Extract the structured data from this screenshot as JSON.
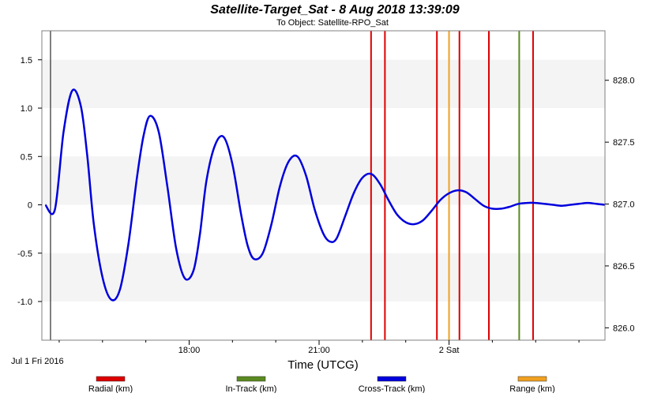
{
  "chart_data": {
    "type": "line",
    "title": "Satellite-Target_Sat -  8 Aug 2018 13:39:09",
    "subtitle": "To Object: Satellite-RPO_Sat",
    "xlabel": "Time (UTCG)",
    "x_start_label": "Jul 1 Fri 2016",
    "x_tick_labels": [
      "18:00",
      "21:00",
      "2 Sat"
    ],
    "x_tick_hours": [
      18,
      21,
      24
    ],
    "xlim_hours": [
      14.6,
      27.6
    ],
    "left_axis": {
      "ylim": [
        -1.4,
        1.8
      ],
      "ticks": [
        -1.0,
        -0.5,
        0,
        0.5,
        1.0,
        1.5
      ],
      "tick_labels": [
        "-1.0",
        "-0.5",
        "0",
        "0.5",
        "1.0",
        "1.5"
      ]
    },
    "right_axis": {
      "ylim": [
        825.9,
        828.4
      ],
      "ticks": [
        826.0,
        826.5,
        827.0,
        827.5,
        828.0
      ],
      "tick_labels": [
        "826.0",
        "826.5",
        "827.0",
        "827.5",
        "828.0"
      ]
    },
    "series": [
      {
        "name": "Cross-Track (km)",
        "color": "#0000dd",
        "axis": "left",
        "x": [
          14.68,
          14.9,
          15.1,
          15.3,
          15.5,
          15.65,
          15.8,
          16.0,
          16.2,
          16.4,
          16.6,
          16.8,
          16.95,
          17.1,
          17.3,
          17.5,
          17.7,
          17.9,
          18.1,
          18.25,
          18.4,
          18.6,
          18.8,
          19.0,
          19.2,
          19.35,
          19.5,
          19.7,
          19.9,
          20.1,
          20.3,
          20.5,
          20.7,
          20.9,
          21.1,
          21.25,
          21.4,
          21.6,
          21.8,
          22.0,
          22.2,
          22.4,
          22.6,
          22.8,
          23.0,
          23.2,
          23.4,
          23.6,
          23.8,
          24.0,
          24.2,
          24.4,
          24.6,
          24.8,
          25.0,
          25.2,
          25.4,
          25.6,
          25.8,
          26.0,
          26.2,
          26.4,
          26.6,
          26.8,
          27.0,
          27.2,
          27.4,
          27.6
        ],
        "values": [
          0.0,
          -0.05,
          0.75,
          1.18,
          1.02,
          0.5,
          -0.2,
          -0.75,
          -0.98,
          -0.88,
          -0.4,
          0.3,
          0.72,
          0.92,
          0.75,
          0.18,
          -0.45,
          -0.76,
          -0.68,
          -0.3,
          0.25,
          0.62,
          0.7,
          0.42,
          -0.1,
          -0.42,
          -0.56,
          -0.5,
          -0.2,
          0.2,
          0.45,
          0.5,
          0.3,
          -0.05,
          -0.3,
          -0.38,
          -0.35,
          -0.12,
          0.12,
          0.28,
          0.32,
          0.22,
          0.05,
          -0.1,
          -0.18,
          -0.2,
          -0.16,
          -0.06,
          0.05,
          0.12,
          0.15,
          0.13,
          0.06,
          -0.01,
          -0.04,
          -0.04,
          -0.02,
          0.01,
          0.02,
          0.02,
          0.01,
          0.0,
          -0.01,
          0.0,
          0.01,
          0.02,
          0.01,
          0.0
        ]
      }
    ],
    "event_lines": [
      {
        "name": "Radial (km)",
        "color": "#dd0000",
        "x": [
          22.2,
          22.52,
          23.72,
          24.24,
          24.92,
          25.94
        ]
      },
      {
        "name": "Range (km)",
        "color": "#f0a020",
        "x": [
          24.0
        ]
      },
      {
        "name": "In-Track (km)",
        "color": "#5a8a20",
        "x": [
          25.62
        ]
      }
    ],
    "start_marker_x": 14.8,
    "legend": {
      "placement": "bottom",
      "entries": [
        {
          "label": "Radial (km)",
          "color": "#dd0000"
        },
        {
          "label": "In-Track (km)",
          "color": "#5a8a20"
        },
        {
          "label": "Cross-Track (km)",
          "color": "#0000dd"
        },
        {
          "label": "Range (km)",
          "color": "#f0a020"
        }
      ]
    },
    "band_color": "#f4f4f4",
    "grid": false
  }
}
